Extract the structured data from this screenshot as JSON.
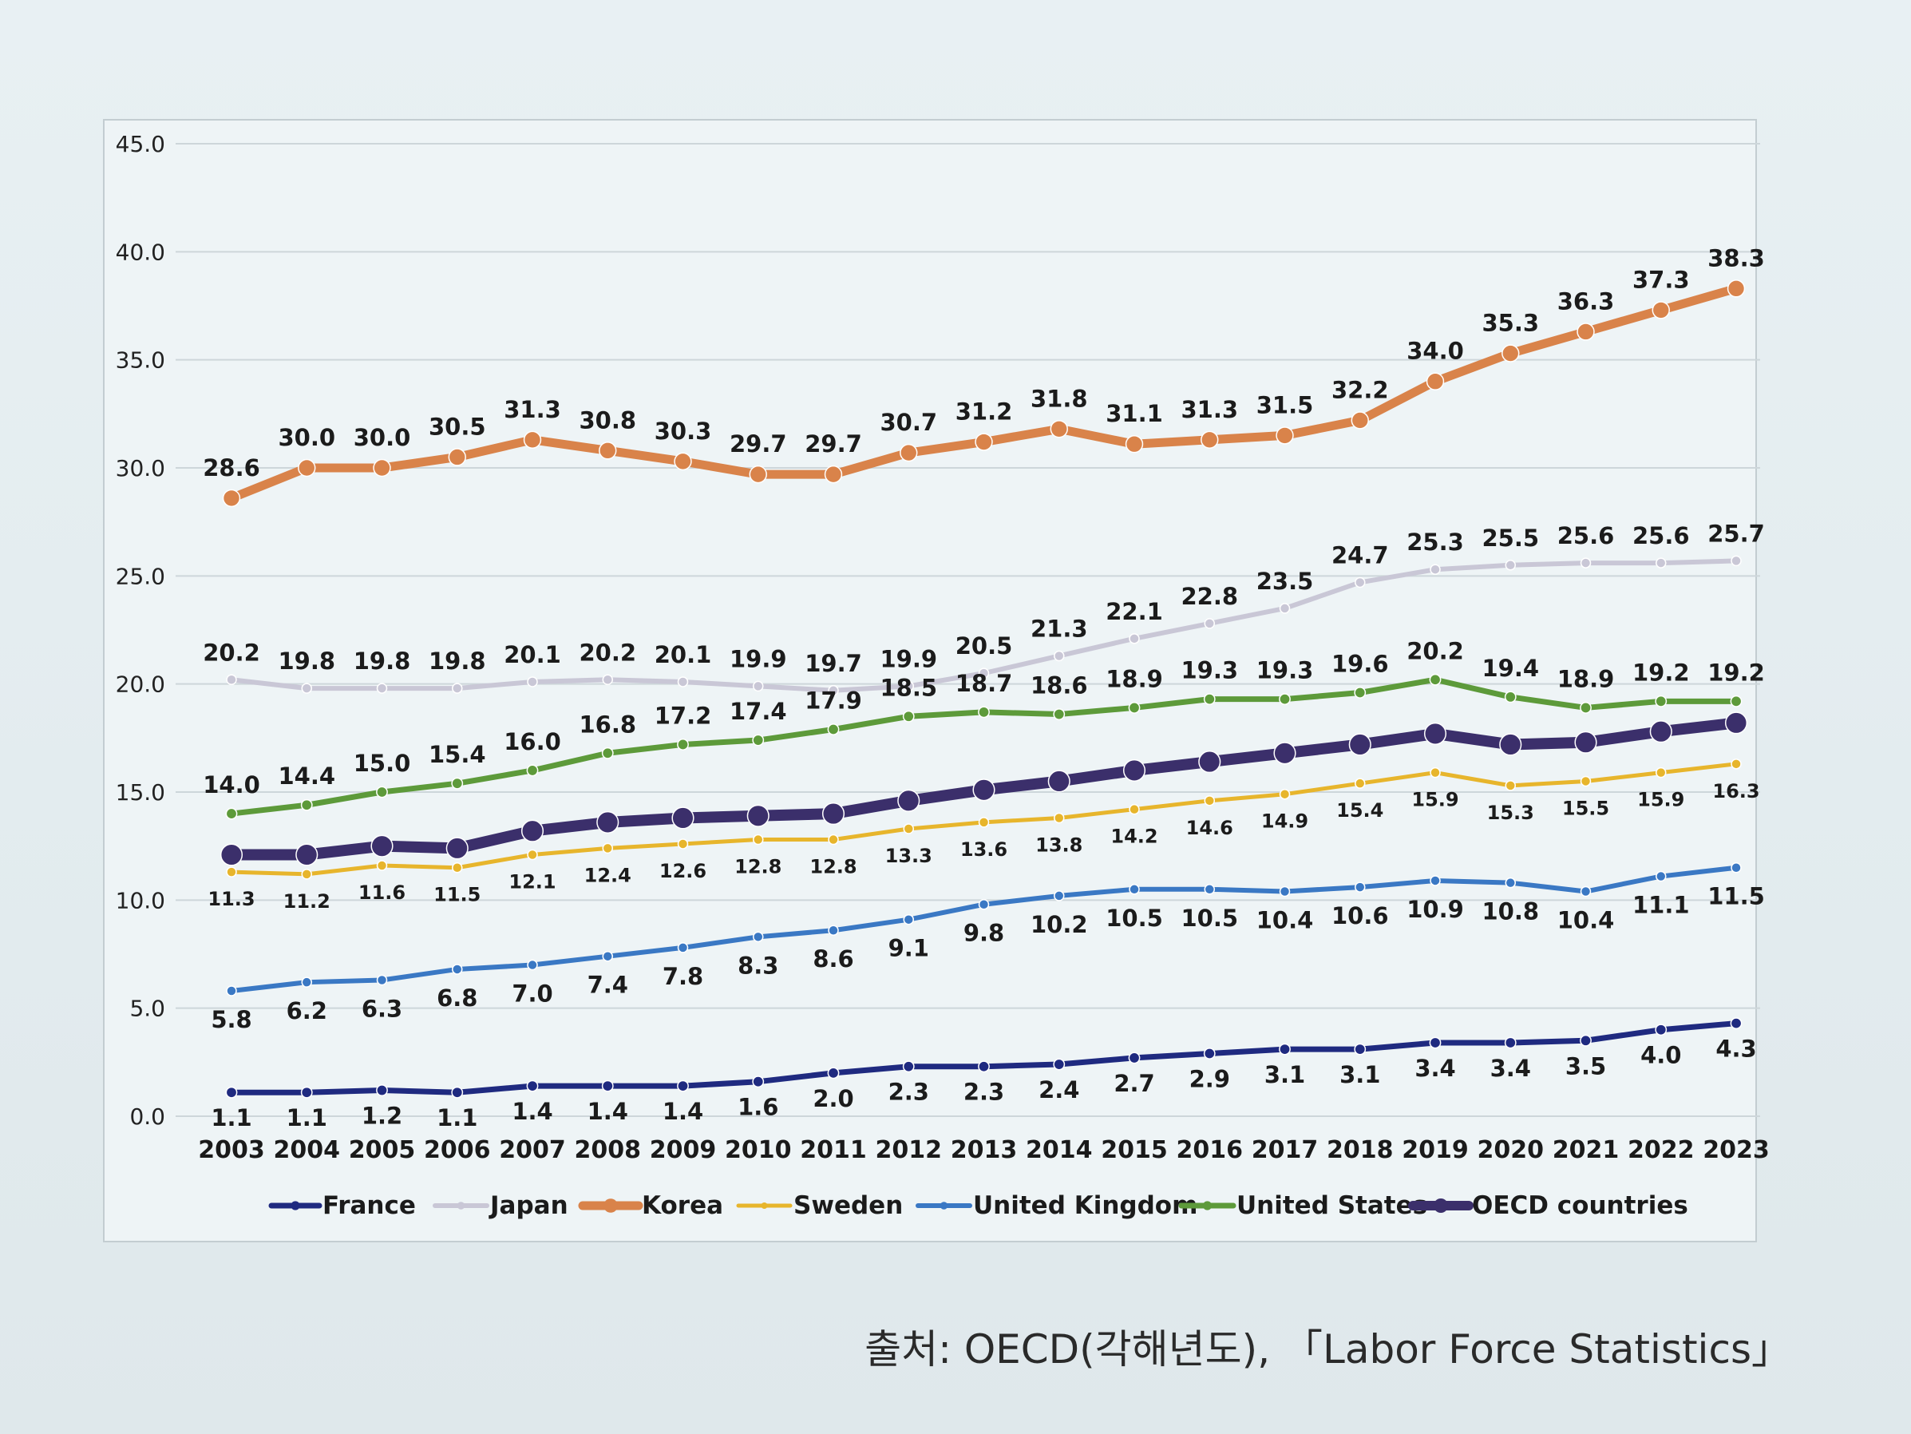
{
  "source": "출처: OECD(각해년도), 「Labor Force Statistics」",
  "chart_data": {
    "type": "line",
    "title": "",
    "xlabel": "",
    "ylabel": "",
    "ylim": [
      0,
      45
    ],
    "yticks": [
      "0.0",
      "5.0",
      "10.0",
      "15.0",
      "20.0",
      "25.0",
      "30.0",
      "35.0",
      "40.0",
      "45.0"
    ],
    "x": [
      "2003",
      "2004",
      "2005",
      "2006",
      "2007",
      "2008",
      "2009",
      "2010",
      "2011",
      "2012",
      "2013",
      "2014",
      "2015",
      "2016",
      "2017",
      "2018",
      "2019",
      "2020",
      "2021",
      "2022",
      "2023"
    ],
    "grid": true,
    "legend_position": "bottom",
    "series": [
      {
        "name": "France",
        "color": "#1f2a80",
        "values": [
          1.1,
          1.1,
          1.2,
          1.1,
          1.4,
          1.4,
          1.4,
          1.6,
          2.0,
          2.3,
          2.3,
          2.4,
          2.7,
          2.9,
          3.1,
          3.1,
          3.4,
          3.4,
          3.5,
          4.0,
          4.3
        ],
        "labels": [
          "1.1",
          "1.1",
          "1.2",
          "1.1",
          "1.4",
          "1.4",
          "1.4",
          "1.6",
          "2.0",
          "2.3",
          "2.3",
          "2.4",
          "2.7",
          "2.9",
          "3.1",
          "3.1",
          "3.4",
          "3.4",
          "3.5",
          "4.0",
          "4.3"
        ]
      },
      {
        "name": "Japan",
        "color": "#c9c7d6",
        "values": [
          20.2,
          19.8,
          19.8,
          19.8,
          20.1,
          20.2,
          20.1,
          19.9,
          19.7,
          19.9,
          20.5,
          21.3,
          22.1,
          22.8,
          23.5,
          24.7,
          25.3,
          25.5,
          25.6,
          25.6,
          25.7
        ],
        "labels": [
          "20.2",
          "19.8",
          "19.8",
          "19.8",
          "20.1",
          "20.2",
          "20.1",
          "19.9",
          "19.7",
          "19.9",
          "20.5",
          "21.3",
          "22.1",
          "22.8",
          "23.5",
          "24.7",
          "25.3",
          "25.5",
          "25.6",
          "25.6",
          "25.7"
        ]
      },
      {
        "name": "Korea",
        "color": "#d9834a",
        "values": [
          28.6,
          30.0,
          30.0,
          30.5,
          31.3,
          30.8,
          30.3,
          29.7,
          29.7,
          30.7,
          31.2,
          31.8,
          31.1,
          31.3,
          31.5,
          32.2,
          34.0,
          35.3,
          36.3,
          37.3,
          38.3
        ],
        "labels": [
          "28.6",
          "30.0",
          "30.0",
          "30.5",
          "31.3",
          "30.8",
          "30.3",
          "29.7",
          "29.7",
          "30.7",
          "31.2",
          "31.8",
          "31.1",
          "31.3",
          "31.5",
          "32.2",
          "34.0",
          "35.3",
          "36.3",
          "37.3",
          "38.3"
        ]
      },
      {
        "name": "Sweden",
        "color": "#e7b52c",
        "values": [
          11.3,
          11.2,
          11.6,
          11.5,
          12.1,
          12.4,
          12.6,
          12.8,
          12.8,
          13.3,
          13.6,
          13.8,
          14.2,
          14.6,
          14.9,
          15.4,
          15.9,
          15.3,
          15.5,
          15.9,
          16.3
        ],
        "labels": [
          "11.3",
          "11.2",
          "11.6",
          "11.5",
          "12.1",
          "12.4",
          "12.6",
          "12.8",
          "12.8",
          "13.3",
          "13.6",
          "13.8",
          "14.2",
          "14.6",
          "14.9",
          "15.4",
          "15.9",
          "15.3",
          "15.5",
          "15.9",
          "16.3"
        ]
      },
      {
        "name": "United Kingdom",
        "color": "#3a78c4",
        "values": [
          5.8,
          6.2,
          6.3,
          6.8,
          7.0,
          7.4,
          7.8,
          8.3,
          8.6,
          9.1,
          9.8,
          10.2,
          10.5,
          10.5,
          10.4,
          10.6,
          10.9,
          10.8,
          10.4,
          11.1,
          11.5
        ],
        "labels": [
          "5.8",
          "6.2",
          "6.3",
          "6.8",
          "7.0",
          "7.4",
          "7.8",
          "8.3",
          "8.6",
          "9.1",
          "9.8",
          "10.2",
          "10.5",
          "10.5",
          "10.4",
          "10.6",
          "10.9",
          "10.8",
          "10.4",
          "11.1",
          "11.5"
        ]
      },
      {
        "name": "United States",
        "color": "#5d9a3a",
        "values": [
          14.0,
          14.4,
          15.0,
          15.4,
          16.0,
          16.8,
          17.2,
          17.4,
          17.9,
          18.5,
          18.7,
          18.6,
          18.9,
          19.3,
          19.3,
          19.6,
          20.2,
          19.4,
          18.9,
          19.2,
          19.2
        ],
        "labels": [
          "14.0",
          "14.4",
          "15.0",
          "15.4",
          "16.0",
          "16.8",
          "17.2",
          "17.4",
          "17.9",
          "18.5",
          "18.7",
          "18.6",
          "18.9",
          "19.3",
          "19.3",
          "19.6",
          "20.2",
          "19.4",
          "18.9",
          "19.2",
          "19.2"
        ]
      },
      {
        "name": "OECD countries",
        "color": "#3b2f6b",
        "values": [
          12.1,
          12.1,
          12.5,
          12.4,
          13.2,
          13.6,
          13.8,
          13.9,
          14.0,
          14.6,
          15.1,
          15.5,
          16.0,
          16.4,
          16.8,
          17.2,
          17.7,
          17.2,
          17.3,
          17.8,
          18.2
        ],
        "labels": []
      }
    ]
  }
}
